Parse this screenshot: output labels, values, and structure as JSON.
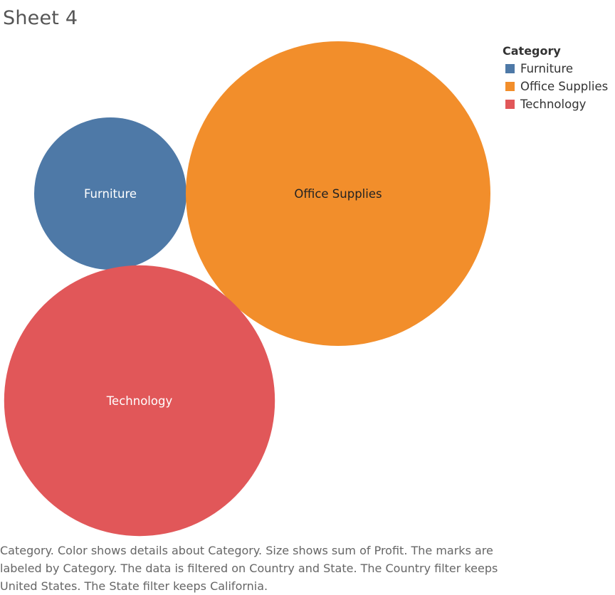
{
  "title": "Sheet 4",
  "legend": {
    "title": "Category",
    "items": [
      {
        "label": "Furniture",
        "color": "#4e79a7"
      },
      {
        "label": "Office Supplies",
        "color": "#f28e2b"
      },
      {
        "label": "Technology",
        "color": "#e15759"
      }
    ]
  },
  "caption": "Category.  Color shows details about Category.  Size shows sum of Profit.  The marks are labeled by Category. The data is filtered on Country and State. The Country filter keeps United States. The State filter keeps California.",
  "chart_data": {
    "type": "bubble",
    "size_measure": "sum of Profit",
    "color_dimension": "Category",
    "legend_position": "top-right",
    "marks": [
      {
        "category": "Furniture",
        "relative_size": 0.25,
        "color": "#4e79a7",
        "label_color": "#ffffff"
      },
      {
        "category": "Office Supplies",
        "relative_size": 1.0,
        "color": "#f28e2b",
        "label_color": "#222222"
      },
      {
        "category": "Technology",
        "relative_size": 0.79,
        "color": "#e15759",
        "label_color": "#ffffff"
      }
    ]
  }
}
